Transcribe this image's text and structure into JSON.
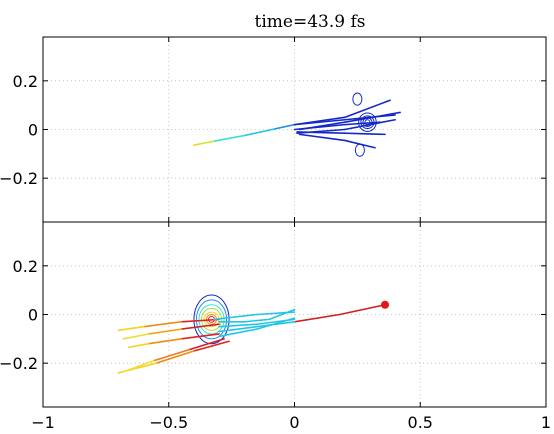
{
  "chart_data": [
    {
      "type": "line",
      "title": "time=43.9 fs",
      "xlim": [
        -1,
        1
      ],
      "ylim": [
        -0.38,
        0.38
      ],
      "xticks": [
        -1,
        -0.5,
        0,
        0.5,
        1
      ],
      "yticks": [
        -0.2,
        0,
        0.2
      ],
      "ytick_labels": [
        "−0.2",
        "0",
        "0.2"
      ],
      "grid": true,
      "color_scale": "jet",
      "series": [
        {
          "points": [
            [
              0,
              0.02
            ],
            [
              -0.08,
              0.002
            ],
            [
              -0.2,
              -0.025
            ],
            [
              -0.32,
              -0.048
            ],
            [
              -0.38,
              -0.06
            ],
            [
              -0.4,
              -0.065
            ]
          ],
          "colors": [
            "#1f8fe8",
            "#20c4ee",
            "#38e0d0",
            "#c8e83a",
            "#f5d21c",
            "#e8a020"
          ]
        },
        {
          "points": [
            [
              0,
              0.02
            ],
            [
              0.2,
              0.05
            ],
            [
              0.38,
              0.12
            ]
          ],
          "color": "#1428c8"
        },
        {
          "points": [
            [
              0,
              0.02
            ],
            [
              0.2,
              0.04
            ],
            [
              0.4,
              0.06
            ]
          ],
          "color": "#1428c8"
        },
        {
          "points": [
            [
              0.02,
              0.0
            ],
            [
              0.2,
              0.03
            ],
            [
              0.42,
              0.07
            ]
          ],
          "color": "#1428c8"
        },
        {
          "points": [
            [
              0.01,
              -0.01
            ],
            [
              0.2,
              -0.015
            ],
            [
              0.36,
              -0.02
            ]
          ],
          "color": "#1428c8"
        },
        {
          "points": [
            [
              0.02,
              -0.02
            ],
            [
              0.2,
              -0.045
            ],
            [
              0.32,
              -0.075
            ]
          ],
          "color": "#1428c8"
        },
        {
          "points": [
            [
              0,
              0.0
            ],
            [
              0.2,
              0.02
            ],
            [
              0.34,
              0.03
            ]
          ],
          "color": "#1428c8"
        },
        {
          "points": [
            [
              0.01,
              -0.015
            ],
            [
              0.2,
              0.0
            ],
            [
              0.4,
              0.04
            ]
          ],
          "color": "#1428c8"
        }
      ],
      "contours": [
        {
          "cx": 0.29,
          "cy": 0.03,
          "rx": [
            0.01,
            0.018,
            0.026,
            0.035
          ],
          "ry": [
            0.01,
            0.018,
            0.026,
            0.038
          ],
          "color": "#1428c8"
        },
        {
          "cx": 0.25,
          "cy": 0.125,
          "rx": [
            0.018
          ],
          "ry": [
            0.025
          ],
          "color": "#1428c8"
        },
        {
          "cx": 0.26,
          "cy": -0.085,
          "rx": [
            0.018
          ],
          "ry": [
            0.025
          ],
          "color": "#1428c8"
        }
      ]
    },
    {
      "type": "line",
      "xlim": [
        -1,
        1
      ],
      "ylim": [
        -0.38,
        0.38
      ],
      "xticks": [
        -1,
        -0.5,
        0,
        0.5,
        1
      ],
      "xtick_labels": [
        "−1",
        "−0.5",
        "0",
        "0.5",
        "1"
      ],
      "yticks": [
        -0.2,
        0,
        0.2
      ],
      "ytick_labels": [
        "−0.2",
        "0",
        "0.2"
      ],
      "grid": true,
      "color_scale": "jet",
      "series": [
        {
          "points": [
            [
              0,
              -0.03
            ],
            [
              0.18,
              0.0
            ],
            [
              0.36,
              0.04
            ]
          ],
          "color": "#d42020"
        },
        {
          "points": [
            [
              -0.3,
              -0.08
            ],
            [
              -0.45,
              -0.1
            ],
            [
              -0.58,
              -0.12
            ],
            [
              -0.66,
              -0.135
            ]
          ],
          "colors": [
            "#e22020",
            "#f08a18",
            "#f5d21c",
            "#a8e040"
          ]
        },
        {
          "points": [
            [
              -0.3,
              -0.02
            ],
            [
              -0.45,
              -0.03
            ],
            [
              -0.6,
              -0.05
            ],
            [
              -0.7,
              -0.065
            ]
          ],
          "colors": [
            "#e22020",
            "#f08a18",
            "#f5d21c",
            "#7ce070"
          ]
        },
        {
          "points": [
            [
              -0.26,
              -0.11
            ],
            [
              -0.4,
              -0.15
            ],
            [
              -0.55,
              -0.2
            ],
            [
              -0.7,
              -0.24
            ]
          ],
          "colors": [
            "#e22020",
            "#f08a18",
            "#f5d21c",
            "#a8e040"
          ]
        },
        {
          "points": [
            [
              -0.28,
              -0.1
            ],
            [
              -0.42,
              -0.145
            ],
            [
              -0.56,
              -0.19
            ],
            [
              -0.68,
              -0.235
            ]
          ],
          "colors": [
            "#d42020",
            "#ee7a18",
            "#f0e030",
            "#c8e83a"
          ]
        },
        {
          "points": [
            [
              -0.3,
              -0.04
            ],
            [
              -0.45,
              -0.06
            ],
            [
              -0.58,
              -0.08
            ],
            [
              -0.68,
              -0.1
            ]
          ],
          "colors": [
            "#d42020",
            "#f5a018",
            "#e8e030",
            "#c8e83a"
          ]
        },
        {
          "points": [
            [
              -0.3,
              -0.03
            ],
            [
              -0.2,
              -0.03
            ],
            [
              -0.1,
              -0.02
            ],
            [
              0,
              0.02
            ]
          ],
          "color": "#22c6e4"
        },
        {
          "points": [
            [
              -0.3,
              -0.05
            ],
            [
              -0.15,
              -0.04
            ],
            [
              0,
              -0.02
            ]
          ],
          "color": "#22c6e4"
        },
        {
          "points": [
            [
              -0.3,
              -0.07
            ],
            [
              -0.15,
              -0.05
            ],
            [
              0,
              -0.03
            ]
          ],
          "color": "#22c6e4"
        },
        {
          "points": [
            [
              -0.3,
              -0.09
            ],
            [
              -0.15,
              -0.06
            ],
            [
              0,
              -0.015
            ]
          ],
          "color": "#22c6e4"
        },
        {
          "points": [
            [
              -0.32,
              -0.02
            ],
            [
              -0.15,
              0.0
            ],
            [
              0,
              0.01
            ]
          ],
          "color": "#22c6e4"
        }
      ],
      "marker": {
        "x": 0.36,
        "y": 0.04,
        "color": "#e21818"
      },
      "contours": [
        {
          "cx": -0.33,
          "cy": -0.02,
          "rx": [
            0.012,
            0.02,
            0.03,
            0.04,
            0.05,
            0.06,
            0.07
          ],
          "ry": [
            0.012,
            0.02,
            0.03,
            0.045,
            0.06,
            0.08,
            0.1
          ],
          "colors": [
            "#e21818",
            "#f08a18",
            "#f5d21c",
            "#a8e040",
            "#38e0d0",
            "#1f8fe8",
            "#1428c8"
          ]
        }
      ]
    }
  ]
}
